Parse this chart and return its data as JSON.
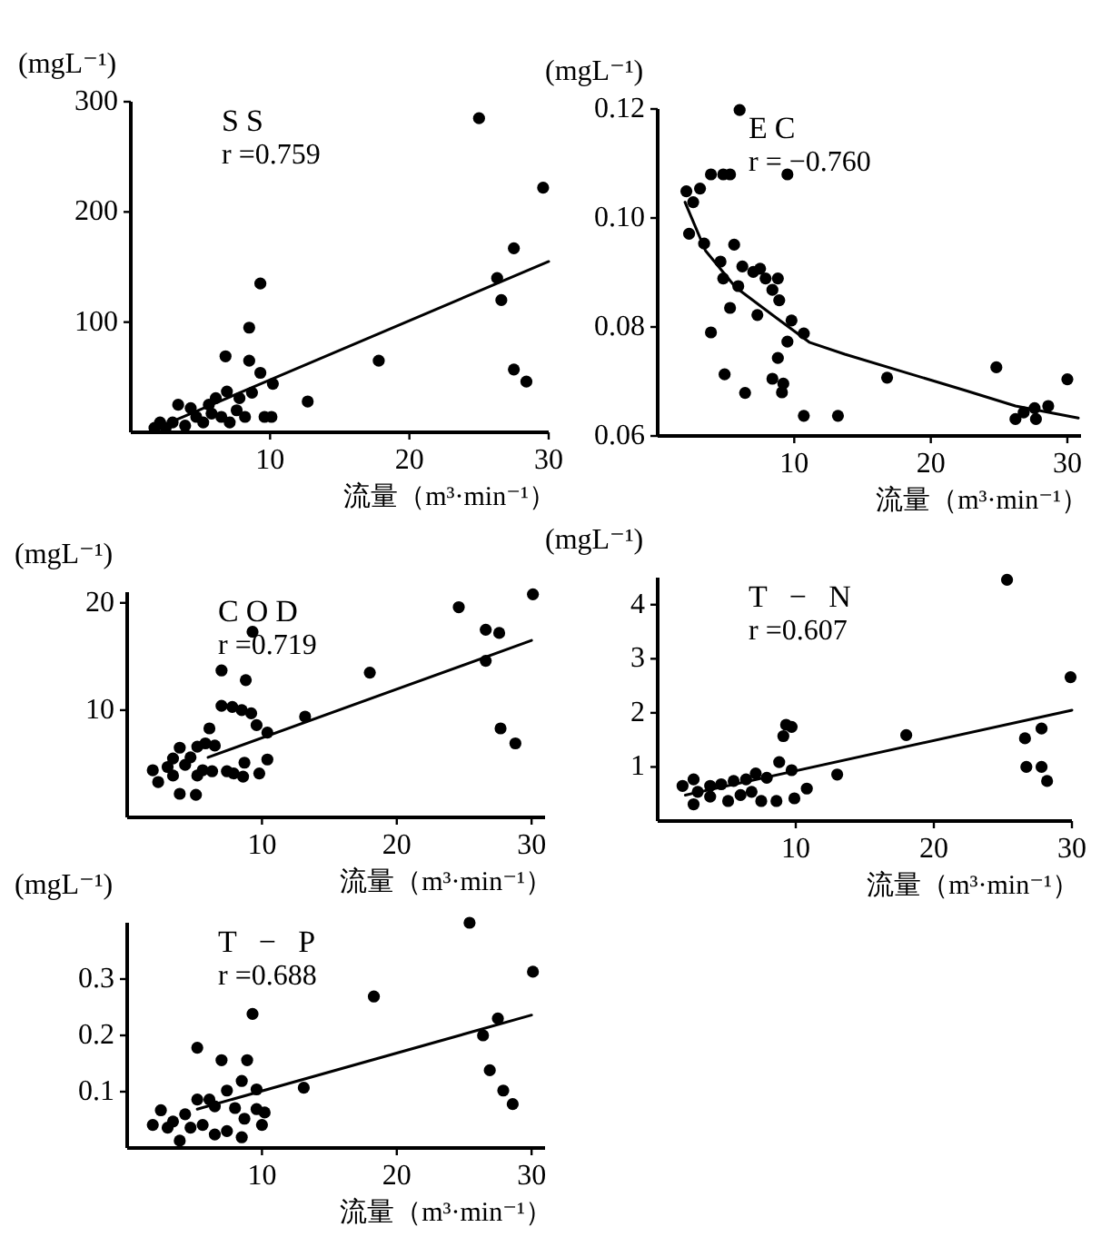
{
  "chart_data": [
    {
      "type": "scatter",
      "title": "SS",
      "annotations": [
        "r =0.759"
      ],
      "xlabel": "流量（m³·min⁻¹）",
      "ylabel": "(mgL⁻¹)",
      "xlim": [
        0,
        30
      ],
      "ylim": [
        0,
        300
      ],
      "xticks": [
        10,
        20,
        30
      ],
      "yticks": [
        100,
        200,
        300
      ],
      "marker": "circle",
      "series": [
        {
          "type": "scatter",
          "color": "#000000",
          "x": [
            25.0,
            29.6,
            27.5,
            26.3,
            26.6,
            27.5,
            28.4,
            17.8,
            12.7,
            9.3,
            8.5,
            8.5,
            6.8,
            9.3,
            10.2,
            6.9,
            9.6,
            10.1,
            8.2,
            3.4,
            4.3,
            5.6,
            6.1,
            4.7,
            2.1,
            1.7,
            3.0,
            5.2,
            6.5,
            7.6,
            7.8,
            8.7,
            3.9,
            2.5,
            5.8,
            7.1
          ],
          "values": [
            285,
            222,
            167,
            140,
            120,
            57,
            46,
            65,
            28,
            135,
            95,
            65,
            69,
            54,
            44,
            37,
            14,
            14,
            14,
            25,
            22,
            25,
            31,
            14,
            9,
            4,
            9,
            9,
            14,
            20,
            31,
            36,
            6,
            4,
            17,
            9
          ]
        },
        {
          "type": "line",
          "color": "#000000",
          "marker": "none",
          "x": [
            3,
            30
          ],
          "values": [
            10,
            155
          ]
        }
      ]
    },
    {
      "type": "scatter",
      "title": "EC",
      "annotations": [
        "r = −0.760"
      ],
      "xlabel": "流量（m³·min⁻¹）",
      "ylabel": "(mgL⁻¹)",
      "xlim": [
        0,
        31
      ],
      "ylim": [
        0.06,
        0.12
      ],
      "xticks": [
        10,
        20,
        30
      ],
      "yticks": [
        {
          "value": 0.06,
          "label": "0.06"
        },
        {
          "value": 0.08,
          "label": "0.08"
        },
        {
          "value": 0.1,
          "label": "0.10"
        },
        {
          "value": 0.12,
          "label": "0.12"
        }
      ],
      "marker": "circle",
      "series": [
        {
          "type": "scatter",
          "color": "#000000",
          "x": [
            2.1,
            2.6,
            3.1,
            2.3,
            3.4,
            3.9,
            4.8,
            5.3,
            6.0,
            9.5,
            4.6,
            5.6,
            4.8,
            5.3,
            3.9,
            5.9,
            6.2,
            7.0,
            7.5,
            7.9,
            7.3,
            8.8,
            8.4,
            8.9,
            9.8,
            9.5,
            10.7,
            8.8,
            8.4,
            9.2,
            9.1,
            4.9,
            6.4,
            10.7,
            13.2,
            16.8,
            24.8,
            26.2,
            26.8,
            27.7,
            27.6,
            28.6,
            30.0
          ],
          "values": [
            0.1049,
            0.1029,
            0.1054,
            0.0971,
            0.0953,
            0.108,
            0.108,
            0.108,
            0.1198,
            0.108,
            0.092,
            0.0951,
            0.0889,
            0.0835,
            0.079,
            0.0875,
            0.0911,
            0.0901,
            0.0907,
            0.0889,
            0.0822,
            0.0889,
            0.0868,
            0.0849,
            0.0812,
            0.0773,
            0.0788,
            0.0743,
            0.0705,
            0.0696,
            0.068,
            0.0713,
            0.0679,
            0.0637,
            0.0637,
            0.0707,
            0.0726,
            0.0631,
            0.0643,
            0.0631,
            0.0651,
            0.0655,
            0.0704
          ]
        },
        {
          "type": "line",
          "color": "#000000",
          "marker": "none",
          "x": [
            2.0,
            3.5,
            5.7,
            8.4,
            11.1,
            13.7,
            18.2,
            22.6,
            26.2,
            30.8
          ],
          "values": [
            0.1029,
            0.094,
            0.0873,
            0.0822,
            0.0772,
            0.075,
            0.0716,
            0.0683,
            0.0655,
            0.0633
          ]
        }
      ]
    },
    {
      "type": "scatter",
      "title": "COD",
      "annotations": [
        "r =0.719"
      ],
      "xlabel": "流量（m³·min⁻¹）",
      "ylabel": "(mgL⁻¹)",
      "xlim": [
        0,
        31
      ],
      "ylim": [
        0,
        21
      ],
      "xticks": [
        10,
        20,
        30
      ],
      "yticks": [
        10,
        20
      ],
      "marker": "circle",
      "series": [
        {
          "type": "scatter",
          "color": "#000000",
          "x": [
            30.1,
            24.6,
            26.6,
            27.6,
            26.6,
            27.7,
            28.8,
            18.0,
            13.2,
            9.3,
            7.0,
            8.8,
            7.0,
            7.8,
            8.5,
            9.2,
            9.6,
            10.4,
            10.4,
            9.8,
            8.7,
            8.6,
            7.4,
            7.9,
            6.1,
            5.8,
            6.5,
            5.2,
            3.9,
            4.7,
            4.3,
            3.4,
            3.0,
            1.9,
            2.3,
            3.9,
            5.1,
            5.6,
            6.3,
            5.2,
            3.4
          ],
          "values": [
            20.8,
            19.6,
            17.5,
            17.2,
            14.6,
            8.3,
            6.9,
            13.5,
            9.4,
            17.3,
            13.7,
            12.8,
            10.4,
            10.3,
            10.0,
            9.7,
            8.6,
            7.9,
            5.4,
            4.1,
            5.1,
            3.8,
            4.3,
            4.1,
            8.3,
            6.9,
            6.7,
            6.6,
            6.5,
            5.6,
            4.9,
            5.5,
            4.7,
            4.4,
            3.3,
            2.2,
            2.1,
            4.4,
            4.3,
            3.9,
            3.9
          ]
        },
        {
          "type": "line",
          "color": "#000000",
          "marker": "none",
          "x": [
            6,
            30
          ],
          "values": [
            5.6,
            16.5
          ]
        }
      ]
    },
    {
      "type": "scatter",
      "title": "T − N",
      "annotations": [
        "r =0.607"
      ],
      "xlabel": "流量（m³·min⁻¹）",
      "ylabel": "(mgL⁻¹)",
      "xlim": [
        0,
        30
      ],
      "ylim": [
        0,
        4.5
      ],
      "xticks": [
        10,
        20,
        30
      ],
      "yticks": [
        1,
        2,
        3,
        4
      ],
      "marker": "circle",
      "series": [
        {
          "type": "scatter",
          "color": "#000000",
          "x": [
            25.3,
            29.9,
            18.0,
            27.8,
            26.6,
            26.7,
            27.8,
            28.2,
            13.0,
            9.3,
            9.7,
            9.1,
            8.8,
            9.7,
            10.8,
            9.9,
            8.6,
            7.5,
            7.1,
            6.4,
            5.5,
            4.6,
            3.8,
            2.6,
            1.8,
            2.6,
            3.8,
            5.1,
            6.0,
            2.9,
            7.9,
            6.8
          ],
          "values": [
            4.46,
            2.66,
            1.59,
            1.71,
            1.53,
            1.0,
            1.0,
            0.74,
            0.86,
            1.78,
            1.74,
            1.57,
            1.09,
            0.94,
            0.6,
            0.42,
            0.37,
            0.37,
            0.88,
            0.77,
            0.74,
            0.68,
            0.65,
            0.77,
            0.65,
            0.31,
            0.45,
            0.37,
            0.48,
            0.54,
            0.8,
            0.54
          ]
        },
        {
          "type": "line",
          "color": "#000000",
          "marker": "none",
          "x": [
            2,
            30
          ],
          "values": [
            0.48,
            2.05
          ]
        }
      ]
    },
    {
      "type": "scatter",
      "title": "T − P",
      "annotations": [
        "r =0.688"
      ],
      "xlabel": "流量（m³·min⁻¹）",
      "ylabel": "(mgL⁻¹)",
      "xlim": [
        0,
        31
      ],
      "ylim": [
        0,
        0.4
      ],
      "xticks": [
        10,
        20,
        30
      ],
      "yticks": [
        0.1,
        0.2,
        0.3
      ],
      "marker": "circle",
      "series": [
        {
          "type": "scatter",
          "color": "#000000",
          "x": [
            25.4,
            30.1,
            18.3,
            27.5,
            26.4,
            26.9,
            27.9,
            28.6,
            13.1,
            9.3,
            5.2,
            7.0,
            8.9,
            8.5,
            7.4,
            9.6,
            9.6,
            8.7,
            10.2,
            10.0,
            5.2,
            6.1,
            6.5,
            8.0,
            2.5,
            1.9,
            3.4,
            4.3,
            4.7,
            3.9,
            5.6,
            6.5,
            7.4,
            8.5,
            3.0
          ],
          "values": [
            0.4,
            0.313,
            0.269,
            0.23,
            0.2,
            0.138,
            0.102,
            0.078,
            0.107,
            0.238,
            0.178,
            0.156,
            0.156,
            0.119,
            0.102,
            0.104,
            0.069,
            0.052,
            0.063,
            0.041,
            0.086,
            0.086,
            0.074,
            0.071,
            0.067,
            0.041,
            0.047,
            0.06,
            0.036,
            0.013,
            0.041,
            0.024,
            0.03,
            0.019,
            0.036
          ]
        },
        {
          "type": "line",
          "color": "#000000",
          "marker": "none",
          "x": [
            5.2,
            30
          ],
          "values": [
            0.069,
            0.236
          ]
        }
      ]
    }
  ]
}
